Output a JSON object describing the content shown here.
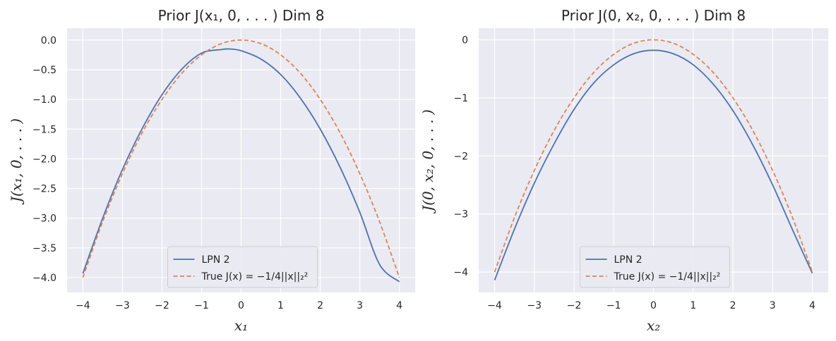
{
  "colors": {
    "background": "#eaeaf2",
    "grid": "#ffffff",
    "lpn": "#4c72b0",
    "true": "#dd8452",
    "legend_face": "#eaeaf2",
    "legend_edge": "#cccccc"
  },
  "chart_data": [
    {
      "type": "line",
      "title": "Prior J(x₁, 0, . . . ) Dim 8",
      "xlabel": "x₁",
      "ylabel": "J(x₁, 0, . . . )",
      "xlim": [
        -4.4,
        4.4
      ],
      "ylim": [
        -4.25,
        0.2
      ],
      "xticks": [
        -4,
        -3,
        -2,
        -1,
        0,
        1,
        2,
        3,
        4
      ],
      "xtick_labels": [
        "−4",
        "−3",
        "−2",
        "−1",
        "0",
        "1",
        "2",
        "3",
        "4"
      ],
      "yticks": [
        0.0,
        -0.5,
        -1.0,
        -1.5,
        -2.0,
        -2.5,
        -3.0,
        -3.5,
        -4.0
      ],
      "ytick_labels": [
        "0.0",
        "−0.5",
        "−1.0",
        "−1.5",
        "−2.0",
        "−2.5",
        "−3.0",
        "−3.5",
        "−4.0"
      ],
      "grid": true,
      "legend_position": "lower center",
      "series": [
        {
          "name": "LPN 2",
          "style": "solid",
          "x": [
            -4,
            -3.5,
            -3,
            -2.5,
            -2,
            -1.5,
            -1,
            -0.5,
            -0.3,
            0,
            0.5,
            1,
            1.5,
            2,
            2.5,
            3,
            3.5,
            4
          ],
          "y": [
            -3.93,
            -3.0,
            -2.18,
            -1.49,
            -0.92,
            -0.49,
            -0.22,
            -0.16,
            -0.15,
            -0.18,
            -0.32,
            -0.58,
            -0.98,
            -1.5,
            -2.14,
            -2.9,
            -3.78,
            -4.07
          ]
        },
        {
          "name": "True J(x) = −1/4||x||₂²",
          "style": "dashed",
          "x": [
            -4,
            -3.5,
            -3,
            -2.5,
            -2,
            -1.5,
            -1,
            -0.5,
            0,
            0.5,
            1,
            1.5,
            2,
            2.5,
            3,
            3.5,
            4
          ],
          "y": [
            -4.0,
            -3.06,
            -2.25,
            -1.56,
            -1.0,
            -0.56,
            -0.25,
            -0.06,
            0.0,
            -0.06,
            -0.25,
            -0.56,
            -1.0,
            -1.56,
            -2.25,
            -3.06,
            -4.0
          ]
        }
      ]
    },
    {
      "type": "line",
      "title": "Prior J(0, x₂, 0, . . . ) Dim 8",
      "xlabel": "x₂",
      "ylabel": "J(0, x₂, 0, . . . )",
      "xlim": [
        -4.4,
        4.4
      ],
      "ylim": [
        -4.35,
        0.2
      ],
      "xticks": [
        -4,
        -3,
        -2,
        -1,
        0,
        1,
        2,
        3,
        4
      ],
      "xtick_labels": [
        "−4",
        "−3",
        "−2",
        "−1",
        "0",
        "1",
        "2",
        "3",
        "4"
      ],
      "yticks": [
        0,
        -1,
        -2,
        -3,
        -4
      ],
      "ytick_labels": [
        "0",
        "−1",
        "−2",
        "−3",
        "−4"
      ],
      "grid": true,
      "legend_position": "lower center",
      "series": [
        {
          "name": "LPN 2",
          "style": "solid",
          "x": [
            -4,
            -3.5,
            -3,
            -2.5,
            -2,
            -1.5,
            -1,
            -0.5,
            0,
            0.5,
            1,
            1.5,
            2,
            2.5,
            3,
            3.5,
            4
          ],
          "y": [
            -4.14,
            -3.26,
            -2.47,
            -1.79,
            -1.2,
            -0.74,
            -0.43,
            -0.24,
            -0.18,
            -0.24,
            -0.43,
            -0.76,
            -1.22,
            -1.81,
            -2.5,
            -3.27,
            -4.02
          ]
        },
        {
          "name": "True J(x) = −1/4||x||₂²",
          "style": "dashed",
          "x": [
            -4,
            -3.5,
            -3,
            -2.5,
            -2,
            -1.5,
            -1,
            -0.5,
            0,
            0.5,
            1,
            1.5,
            2,
            2.5,
            3,
            3.5,
            4
          ],
          "y": [
            -4.0,
            -3.06,
            -2.25,
            -1.56,
            -1.0,
            -0.56,
            -0.25,
            -0.06,
            0.0,
            -0.06,
            -0.25,
            -0.56,
            -1.0,
            -1.56,
            -2.25,
            -3.06,
            -4.0
          ]
        }
      ]
    }
  ]
}
